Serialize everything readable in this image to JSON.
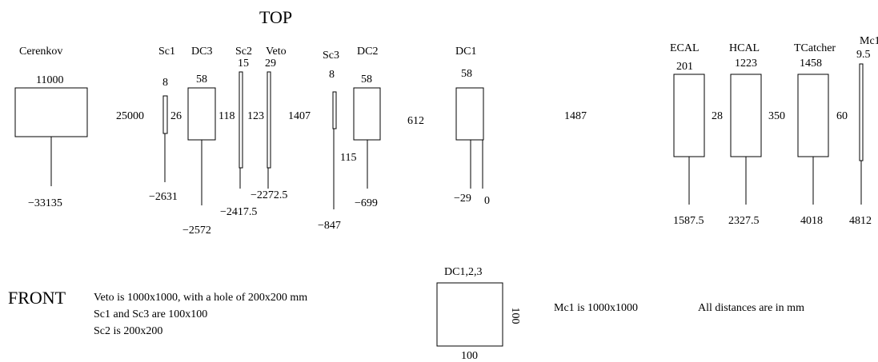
{
  "top_title": "TOP",
  "front_title": "FRONT",
  "detectors": {
    "cerenkov": {
      "name": "Cerenkov",
      "size": "11000",
      "pos": "−33135"
    },
    "sc1": {
      "name": "Sc1",
      "size": "8",
      "height": "26",
      "pos": "−2631"
    },
    "dc3": {
      "name": "DC3",
      "size": "58",
      "height": "118",
      "pos": "−2572"
    },
    "sc2": {
      "name": "Sc2",
      "size": "15",
      "pos": "−2417.5"
    },
    "veto": {
      "name": "Veto",
      "size": "29",
      "height": "123",
      "pos": "−2272.5"
    },
    "sc3": {
      "name": "Sc3",
      "size": "8",
      "height": "115",
      "pos": "−847"
    },
    "dc2": {
      "name": "DC2",
      "size": "58",
      "pos": "−699"
    },
    "dc1": {
      "name": "DC1",
      "size": "58",
      "pos_a": "−29",
      "pos_b": "0"
    },
    "ecal": {
      "name": "ECAL",
      "size": "201",
      "height": "28",
      "pos": "1587.5"
    },
    "hcal": {
      "name": "HCAL",
      "size": "1223",
      "height": "350",
      "pos": "2327.5"
    },
    "tcatcher": {
      "name": "TCatcher",
      "size": "1458",
      "height": "60",
      "pos": "4018"
    },
    "mc1": {
      "name": "Mc1",
      "size": "9.5",
      "pos": "4812"
    }
  },
  "gaps": {
    "g1": "25000",
    "g2": "1407",
    "g3": "612",
    "g4": "1487"
  },
  "front": {
    "notes": [
      "Veto is 1000x1000, with a hole of 200x200 mm",
      "Sc1 and Sc3 are 100x100",
      "Sc2 is 200x200"
    ],
    "dc_label": "DC1,2,3",
    "dc_width": "100",
    "dc_height": "100",
    "mc1_note": "Mc1 is 1000x1000",
    "units_note": "All distances are in mm"
  }
}
